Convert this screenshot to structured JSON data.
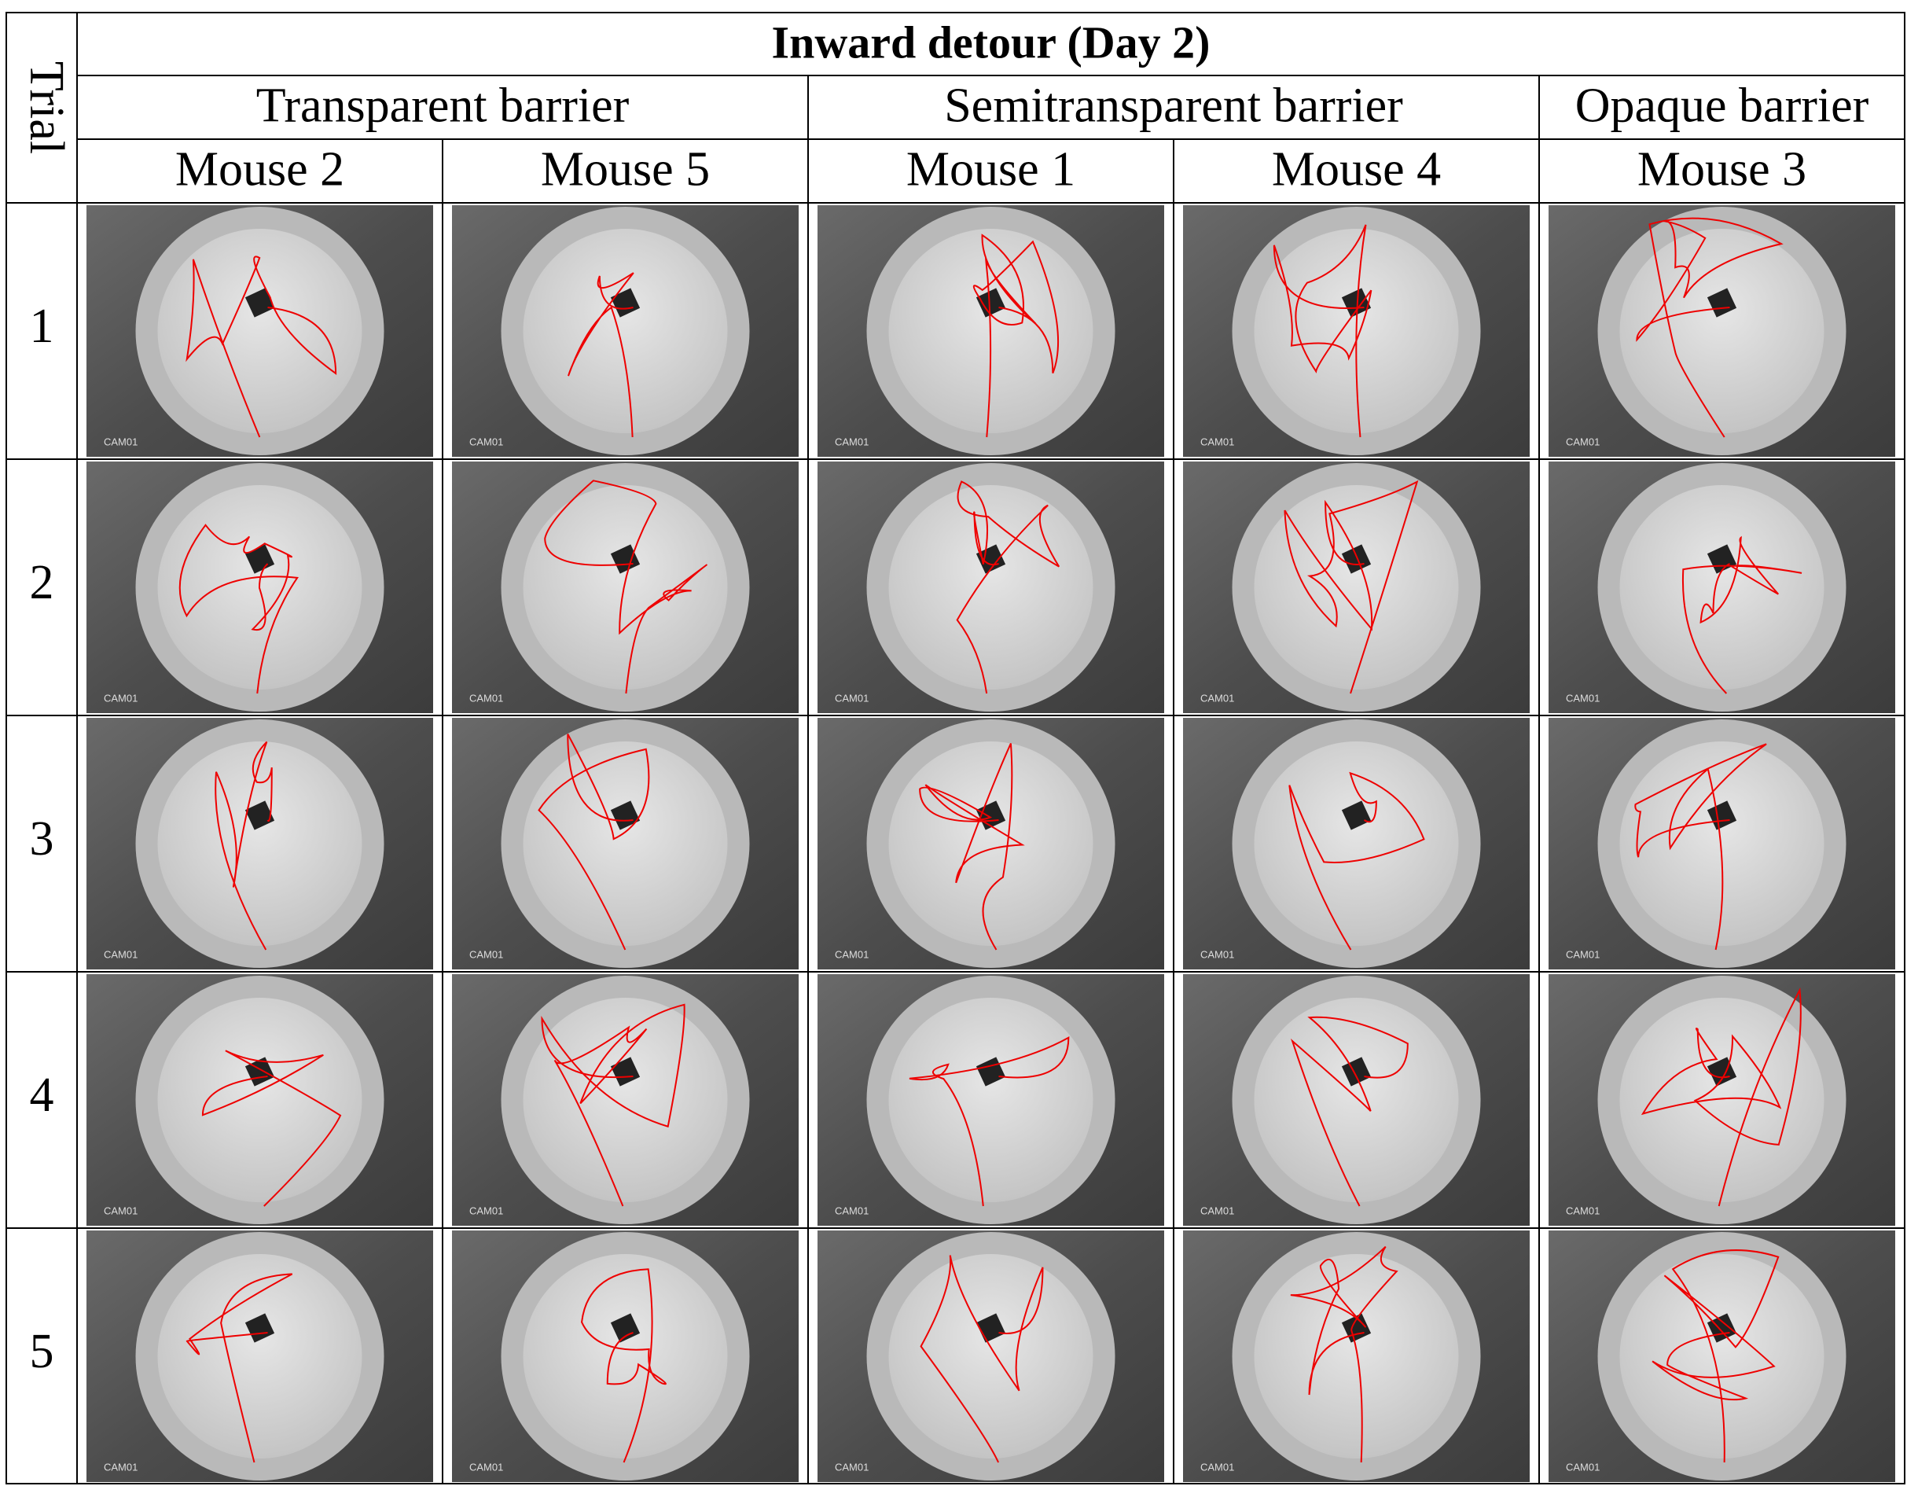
{
  "title": "Inward detour (Day 2)",
  "row_header": "Trial",
  "groups": [
    {
      "label": "Transparent barrier",
      "mice": [
        "Mouse 2",
        "Mouse 5"
      ]
    },
    {
      "label": "Semitransparent barrier",
      "mice": [
        "Mouse 1",
        "Mouse 4"
      ]
    },
    {
      "label": "Opaque barrier",
      "mice": [
        "Mouse 3"
      ]
    }
  ],
  "trials": [
    1,
    2,
    3,
    4,
    5
  ],
  "camera_label": "CAM01"
}
